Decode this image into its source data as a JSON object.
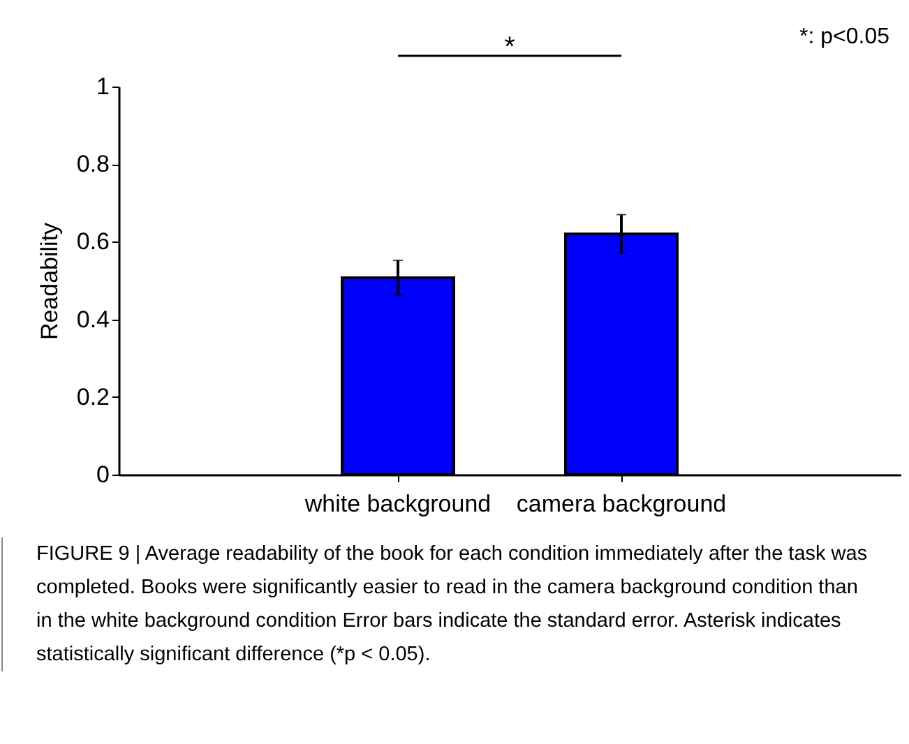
{
  "chart_data": {
    "type": "bar",
    "ylabel": "Readability",
    "categories": [
      "white background",
      "camera background"
    ],
    "values": [
      0.507,
      0.62
    ],
    "errors": [
      0.045,
      0.05
    ],
    "color": "#0000ff",
    "ylim": [
      0,
      1
    ],
    "yticks": [
      0,
      0.2,
      0.4,
      0.6,
      0.8,
      1
    ],
    "grid": false,
    "annotations": [
      "*",
      "*: p<0.05",
      "FIGURE 9 | Average readability of the book for each condition immediately after the task was completed. Books were significantly easier to read in the camera background condition than in the white background condition Error bars indicate the standard error. Asterisk indicates statistically significant difference (*p < 0.05)."
    ]
  }
}
